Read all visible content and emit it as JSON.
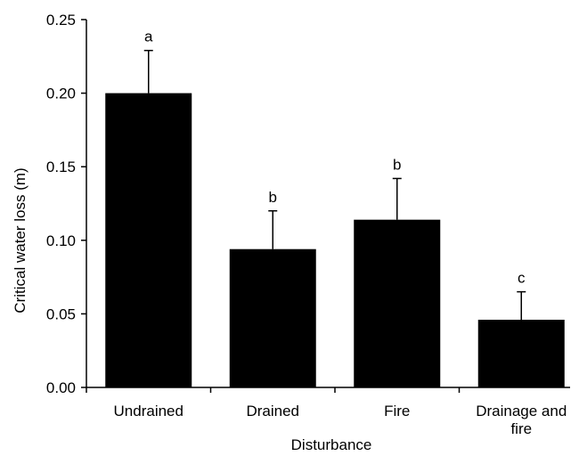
{
  "chart_data": {
    "type": "bar",
    "title": "",
    "xlabel": "Disturbance",
    "ylabel": "Critical water loss (m)",
    "ylim": [
      0,
      0.25
    ],
    "yticks": [
      "0.00",
      "0.05",
      "0.10",
      "0.15",
      "0.20",
      "0.25"
    ],
    "categories": [
      [
        "Undrained"
      ],
      [
        "Drained"
      ],
      [
        "Fire"
      ],
      [
        "Drainage and",
        "fire"
      ]
    ],
    "values": [
      0.2,
      0.094,
      0.114,
      0.046
    ],
    "errors": [
      0.029,
      0.026,
      0.028,
      0.019
    ],
    "significance": [
      "a",
      "b",
      "b",
      "c"
    ],
    "bar_color": "#000000",
    "grid": false,
    "legend": "none"
  }
}
